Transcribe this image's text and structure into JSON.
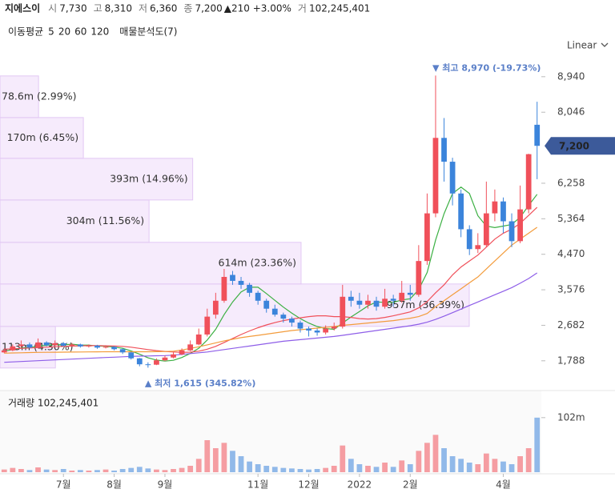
{
  "chart_data": {
    "type": "candlestick",
    "header": {
      "name": "지에스이",
      "items": [
        {
          "label": "시",
          "value": "7,730"
        },
        {
          "label": "고",
          "value": "8,310"
        },
        {
          "label": "저",
          "value": "6,360"
        },
        {
          "label": "종",
          "value": "7,200"
        }
      ],
      "change": "▲210 +3.00%",
      "volume": {
        "label": "거",
        "value": "102,245,401"
      }
    },
    "ma_title": "이동평균",
    "profile_title": "매물분석도(7)",
    "scale_label": "Linear",
    "categories": [
      null,
      null,
      null,
      null,
      null,
      null,
      null,
      "7월",
      null,
      null,
      null,
      null,
      null,
      "8월",
      null,
      null,
      null,
      null,
      null,
      "9월",
      null,
      null,
      null,
      null,
      null,
      null,
      null,
      null,
      null,
      null,
      "11월",
      null,
      null,
      null,
      null,
      null,
      "12월",
      null,
      null,
      null,
      null,
      null,
      "2022",
      null,
      null,
      null,
      null,
      null,
      "2월",
      null,
      null,
      null,
      null,
      null,
      null,
      null,
      null,
      null,
      null,
      "4월",
      null,
      null,
      null,
      null
    ],
    "open": [
      2000,
      2050,
      2160,
      2200,
      2120,
      2250,
      2180,
      2230,
      2170,
      2200,
      2150,
      2170,
      2120,
      2140,
      2080,
      2000,
      1850,
      1700,
      1690,
      1800,
      1870,
      1950,
      2050,
      2200,
      2450,
      2950,
      3300,
      3950,
      3800,
      3700,
      3500,
      3300,
      3100,
      2950,
      2850,
      2750,
      2600,
      2550,
      2500,
      2600,
      2650,
      3400,
      3300,
      3200,
      3300,
      3150,
      3350,
      3300,
      3500,
      3450,
      4300,
      5500,
      7400,
      6800,
      6000,
      5100,
      4600,
      4700,
      5500,
      5800,
      5300,
      4800,
      5600,
      7730
    ],
    "high": [
      2100,
      2200,
      2300,
      2250,
      2350,
      2280,
      2300,
      2260,
      2240,
      2220,
      2200,
      2190,
      2180,
      2150,
      2100,
      2010,
      1860,
      1750,
      1850,
      1920,
      2000,
      2100,
      2300,
      2600,
      3100,
      3500,
      4100,
      4050,
      3900,
      3750,
      3550,
      3350,
      3200,
      3000,
      2900,
      2800,
      2650,
      2600,
      2680,
      2750,
      3700,
      3550,
      3500,
      3450,
      3400,
      3600,
      3450,
      3800,
      3700,
      4700,
      6000,
      8970,
      7900,
      6900,
      6100,
      5200,
      5000,
      6300,
      6100,
      5900,
      5500,
      6200,
      7000,
      8310
    ],
    "low": [
      1980,
      2030,
      2120,
      2100,
      2100,
      2150,
      2160,
      2150,
      2140,
      2120,
      2120,
      2090,
      2100,
      2050,
      1960,
      1820,
      1650,
      1615,
      1680,
      1780,
      1850,
      1930,
      2030,
      2180,
      2400,
      2850,
      3250,
      3700,
      3600,
      3400,
      3200,
      3000,
      2900,
      2750,
      2650,
      2500,
      2400,
      2420,
      2450,
      2550,
      2600,
      3150,
      3100,
      3100,
      3050,
      3100,
      3150,
      3250,
      3300,
      3400,
      4200,
      5400,
      6300,
      5700,
      4900,
      4450,
      4500,
      4650,
      5300,
      5000,
      4650,
      4750,
      5500,
      6360
    ],
    "close": [
      2050,
      2150,
      2200,
      2120,
      2250,
      2180,
      2230,
      2170,
      2200,
      2150,
      2170,
      2120,
      2140,
      2080,
      2000,
      1850,
      1700,
      1680,
      1800,
      1870,
      1950,
      2050,
      2200,
      2450,
      2900,
      3300,
      3900,
      3800,
      3700,
      3500,
      3300,
      3100,
      2950,
      2850,
      2750,
      2600,
      2550,
      2500,
      2600,
      2650,
      3400,
      3300,
      3200,
      3300,
      3150,
      3350,
      3300,
      3500,
      3450,
      4300,
      5500,
      7400,
      6800,
      6000,
      5100,
      4600,
      4700,
      5500,
      5800,
      5300,
      4800,
      5600,
      6990,
      7200
    ],
    "up_color": "#f0505a",
    "down_color": "#3b84db",
    "ma": [
      {
        "name": "5",
        "color": "#3cb043",
        "values": [
          2030,
          2070,
          2110,
          2130,
          2154,
          2180,
          2196,
          2190,
          2206,
          2186,
          2184,
          2162,
          2156,
          2132,
          2102,
          2038,
          1954,
          1862,
          1806,
          1780,
          1800,
          1870,
          1974,
          2104,
          2310,
          2580,
          2950,
          3270,
          3520,
          3640,
          3640,
          3480,
          3310,
          3140,
          2990,
          2850,
          2740,
          2650,
          2600,
          2580,
          2740,
          2890,
          3030,
          3170,
          3270,
          3260,
          3260,
          3320,
          3350,
          3580,
          4010,
          4830,
          5490,
          6000,
          6160,
          6000,
          5440,
          5180,
          5140,
          5180,
          5220,
          5400,
          5700,
          5980
        ]
      },
      {
        "name": "20",
        "color": "#f0505a",
        "values": [
          2080,
          2090,
          2100,
          2110,
          2120,
          2130,
          2140,
          2150,
          2160,
          2165,
          2170,
          2170,
          2165,
          2160,
          2150,
          2130,
          2100,
          2070,
          2045,
          2025,
          2010,
          2000,
          2005,
          2030,
          2080,
          2150,
          2250,
          2350,
          2450,
          2540,
          2620,
          2690,
          2750,
          2800,
          2840,
          2870,
          2900,
          2920,
          2920,
          2900,
          2900,
          2880,
          2850,
          2840,
          2850,
          2880,
          2920,
          2970,
          3020,
          3120,
          3280,
          3500,
          3700,
          3950,
          4150,
          4300,
          4450,
          4650,
          4850,
          5000,
          5100,
          5250,
          5450,
          5650
        ]
      },
      {
        "name": "60",
        "color": "#f39c3c",
        "values": [
          1980,
          1985,
          1990,
          1995,
          2000,
          2002,
          2004,
          2006,
          2008,
          2010,
          2012,
          2014,
          2015,
          2016,
          2016,
          2016,
          2015,
          2015,
          2018,
          2022,
          2030,
          2060,
          2100,
          2140,
          2190,
          2240,
          2290,
          2330,
          2370,
          2400,
          2430,
          2460,
          2490,
          2520,
          2550,
          2570,
          2590,
          2610,
          2630,
          2650,
          2680,
          2700,
          2720,
          2740,
          2760,
          2780,
          2800,
          2830,
          2860,
          2900,
          2980,
          3150,
          3300,
          3450,
          3600,
          3750,
          3900,
          4100,
          4300,
          4500,
          4700,
          4850,
          5000,
          5150
        ]
      },
      {
        "name": "120",
        "color": "#8e5ee8",
        "values": [
          1750,
          1760,
          1770,
          1780,
          1790,
          1800,
          1810,
          1820,
          1830,
          1840,
          1850,
          1860,
          1870,
          1880,
          1890,
          1900,
          1905,
          1910,
          1915,
          1920,
          1930,
          1950,
          1970,
          1990,
          2010,
          2040,
          2070,
          2100,
          2130,
          2160,
          2190,
          2220,
          2250,
          2280,
          2300,
          2320,
          2340,
          2360,
          2380,
          2400,
          2430,
          2460,
          2490,
          2520,
          2550,
          2580,
          2610,
          2640,
          2670,
          2710,
          2760,
          2830,
          2910,
          3000,
          3090,
          3180,
          3270,
          3360,
          3450,
          3540,
          3630,
          3740,
          3860,
          4000
        ]
      }
    ],
    "ylim": [
      1200,
      9360
    ],
    "yticks": [
      {
        "value": 1788,
        "label": "1,788"
      },
      {
        "value": 2682,
        "label": "2,682"
      },
      {
        "value": 3576,
        "label": "3,576"
      },
      {
        "value": 4470,
        "label": "4,470"
      },
      {
        "value": 5364,
        "label": "5,364"
      },
      {
        "value": 6258,
        "label": "6,258"
      },
      {
        "value": 8046,
        "label": "8,046"
      },
      {
        "value": 8940,
        "label": "8,940"
      }
    ],
    "last_tag": {
      "value": 7200,
      "label": "7,200"
    },
    "max_label": "▼ 최고 8,970 (-19.73%)",
    "min_label": "▲ 최저 1,615 (345.82%)",
    "profile": {
      "bins": [
        1607,
        2654,
        3722,
        4770,
        5837,
        6885,
        7912,
        8960
      ],
      "values": [
        113000000,
        957000000,
        614000000,
        304000000,
        393000000,
        170000000,
        78600000
      ],
      "value_labels": [
        "113m (4.30%)",
        "957m (36.39%)",
        "614m (23.36%)",
        "304m (11.56%)",
        "393m (14.96%)",
        "170m (6.45%)",
        "78.6m (2.99%)"
      ],
      "color": "#f3e4fb"
    },
    "volume": {
      "title": "거래량 102,245,401",
      "values": [
        5000000,
        8000000,
        6000000,
        4000000,
        9000000,
        5000000,
        4000000,
        6000000,
        3000000,
        4000000,
        3000000,
        4000000,
        5000000,
        3000000,
        6000000,
        8000000,
        10000000,
        7000000,
        5000000,
        4000000,
        6000000,
        8000000,
        12000000,
        25000000,
        60000000,
        45000000,
        55000000,
        40000000,
        30000000,
        20000000,
        15000000,
        12000000,
        10000000,
        8000000,
        7000000,
        6000000,
        5000000,
        6000000,
        8000000,
        12000000,
        50000000,
        25000000,
        15000000,
        12000000,
        10000000,
        18000000,
        10000000,
        22000000,
        15000000,
        40000000,
        55000000,
        70000000,
        45000000,
        30000000,
        25000000,
        18000000,
        15000000,
        35000000,
        25000000,
        20000000,
        15000000,
        30000000,
        45000000,
        102245401
      ],
      "ylim": [
        0,
        150000000
      ],
      "yticks": [
        {
          "value": 102245401,
          "label": "102m"
        }
      ]
    }
  }
}
